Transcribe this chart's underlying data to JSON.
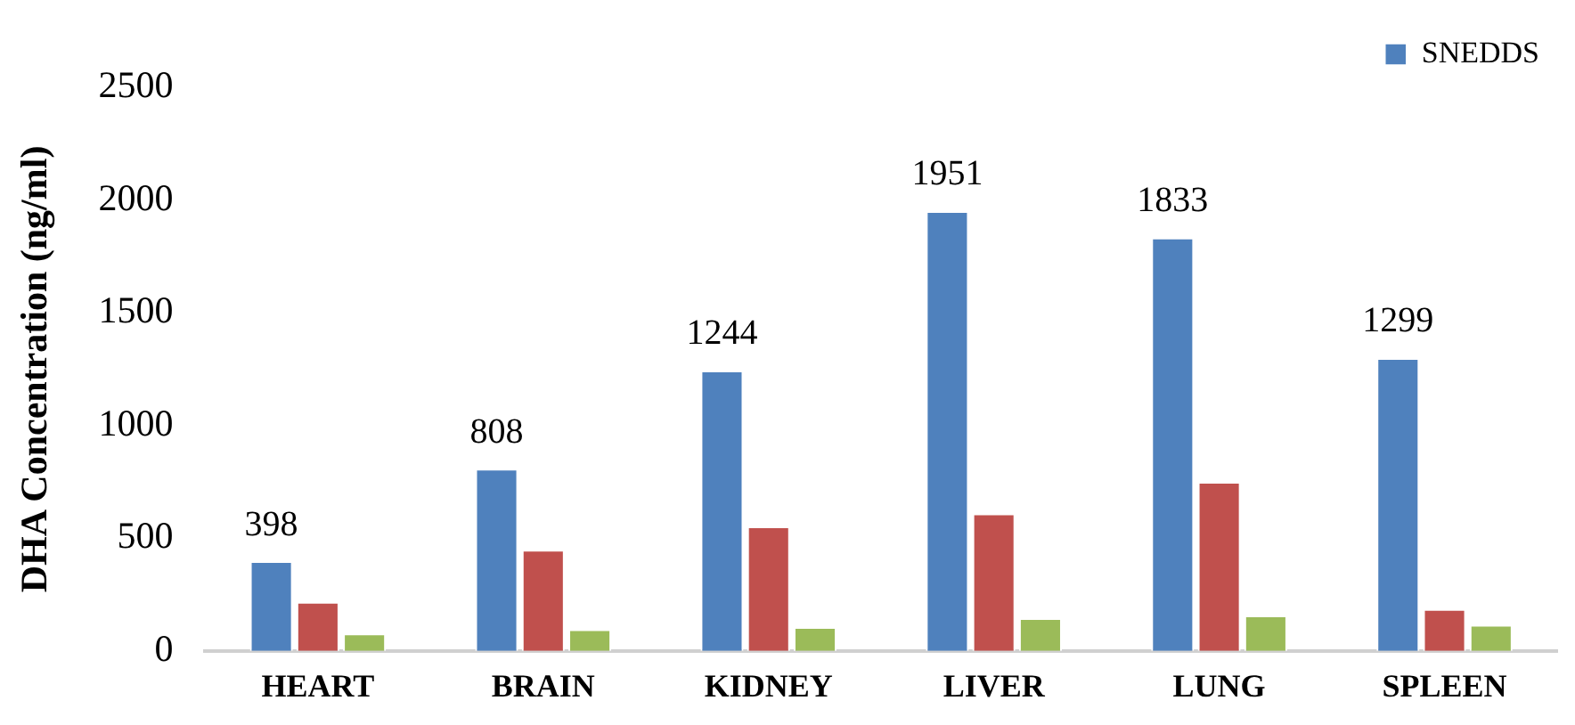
{
  "chart_data": {
    "type": "bar",
    "ylabel": "DHA Concentration (ng/ml)",
    "categories": [
      "HEART",
      "BRAIN",
      "KIDNEY",
      "LIVER",
      "LUNG",
      "SPLEEN"
    ],
    "series": [
      {
        "name": "SNEDDS",
        "color": "#4f81bd",
        "values": [
          398,
          808,
          1244,
          1951,
          1833,
          1299
        ],
        "value_labels": [
          "398",
          "808",
          "1244",
          "1951",
          "1833",
          "1299"
        ]
      },
      {
        "color": "#c0504d",
        "values": [
          217,
          449,
          552,
          610,
          750,
          186
        ]
      },
      {
        "color": "#9bbb59",
        "values": [
          77,
          96,
          106,
          145,
          157,
          116
        ]
      }
    ],
    "ylim": [
      0,
      2500
    ],
    "yticks": [
      0,
      500,
      1000,
      1500,
      2000,
      2500
    ],
    "grid": false,
    "legend": "top right"
  }
}
